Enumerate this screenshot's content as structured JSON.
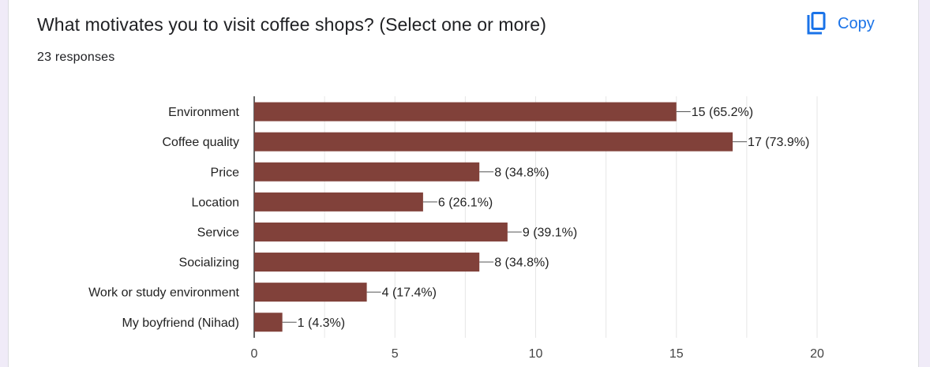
{
  "question": {
    "title": "What motivates you to visit coffee shops? (Select one or more)",
    "responses": "23 responses"
  },
  "copy_button": {
    "label": "Copy",
    "icon": "copy-icon"
  },
  "colors": {
    "bar": "#81413a",
    "accent": "#1a73e8",
    "grid": "#e6e6e6",
    "axis": "#333333"
  },
  "chart_data": {
    "type": "bar",
    "orientation": "horizontal",
    "categories": [
      "Environment",
      "Coffee quality",
      "Price",
      "Location",
      "Service",
      "Socializing",
      "Work or study environment",
      "My boyfriend (Nihad)"
    ],
    "values": [
      15,
      17,
      8,
      6,
      9,
      8,
      4,
      1
    ],
    "data_labels": [
      "15 (65.2%)",
      "17 (73.9%)",
      "8 (34.8%)",
      "6 (26.1%)",
      "9 (39.1%)",
      "8 (34.8%)",
      "4 (17.4%)",
      "1 (4.3%)"
    ],
    "xlim": [
      0,
      20
    ],
    "x_ticks": [
      0,
      5,
      10,
      15,
      20
    ],
    "grid": true,
    "title": "",
    "xlabel": "",
    "ylabel": ""
  }
}
